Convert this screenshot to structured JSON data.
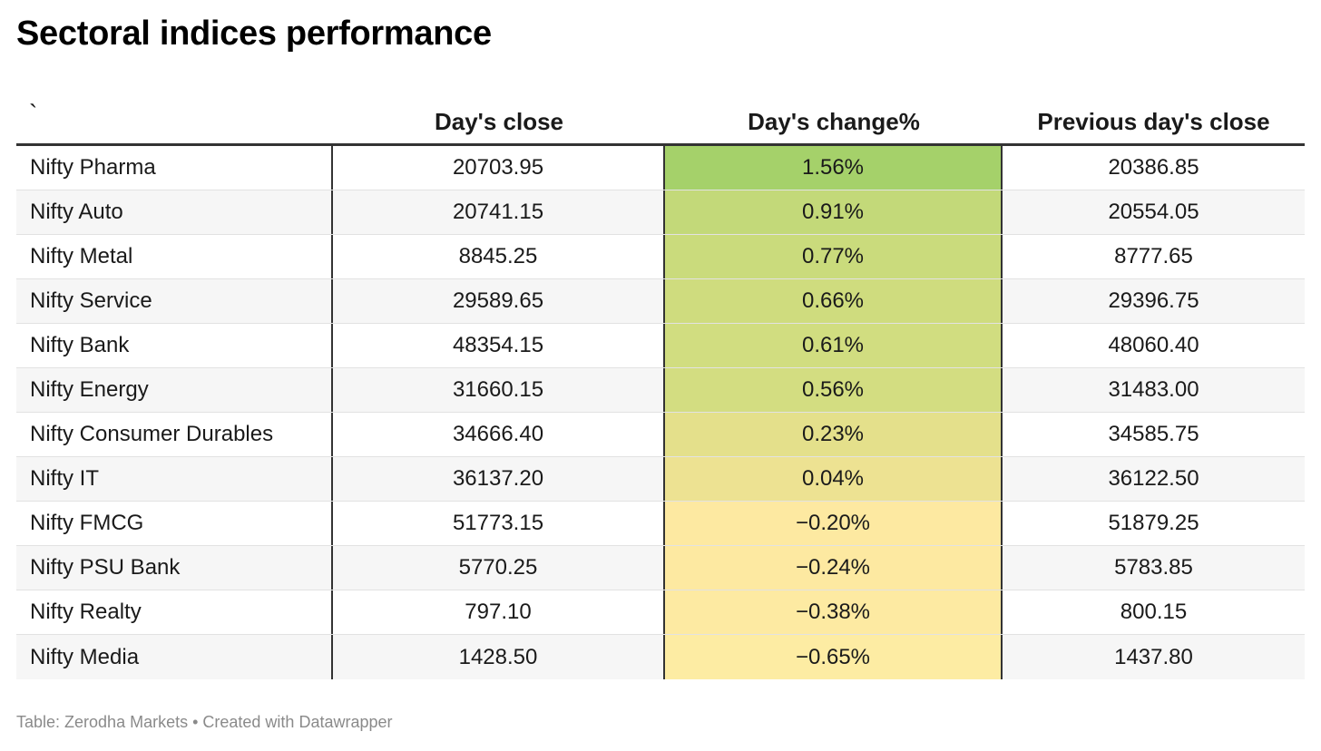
{
  "title": "Sectoral indices performance",
  "columns": {
    "first": "`",
    "close": "Day's close",
    "change": "Day's change%",
    "prev": "Previous day's close"
  },
  "footer": "Table: Zerodha Markets • Created with Datawrapper",
  "colors": {
    "header_rule": "#333333",
    "heat_high": "#a5d16a",
    "heat_mid": "#efe293",
    "heat_low": "#fdeca3"
  },
  "chart_data": {
    "type": "table",
    "columns": [
      "`",
      "Day's close",
      "Day's change%",
      "Previous day's close"
    ],
    "rows": [
      {
        "name": "Nifty Pharma",
        "close": "20703.95",
        "change": "1.56%",
        "prev": "20386.85",
        "change_value": 1.56
      },
      {
        "name": "Nifty Auto",
        "close": "20741.15",
        "change": "0.91%",
        "prev": "20554.05",
        "change_value": 0.91
      },
      {
        "name": "Nifty Metal",
        "close": "8845.25",
        "change": "0.77%",
        "prev": "8777.65",
        "change_value": 0.77
      },
      {
        "name": "Nifty Service",
        "close": "29589.65",
        "change": "0.66%",
        "prev": "29396.75",
        "change_value": 0.66
      },
      {
        "name": "Nifty Bank",
        "close": "48354.15",
        "change": "0.61%",
        "prev": "48060.40",
        "change_value": 0.61
      },
      {
        "name": "Nifty Energy",
        "close": "31660.15",
        "change": "0.56%",
        "prev": "31483.00",
        "change_value": 0.56
      },
      {
        "name": "Nifty Consumer Durables",
        "close": "34666.40",
        "change": "0.23%",
        "prev": "34585.75",
        "change_value": 0.23
      },
      {
        "name": "Nifty IT",
        "close": "36137.20",
        "change": "0.04%",
        "prev": "36122.50",
        "change_value": 0.04
      },
      {
        "name": "Nifty FMCG",
        "close": "51773.15",
        "change": "−0.20%",
        "prev": "51879.25",
        "change_value": -0.2
      },
      {
        "name": "Nifty PSU Bank",
        "close": "5770.25",
        "change": "−0.24%",
        "prev": "5783.85",
        "change_value": -0.24
      },
      {
        "name": "Nifty Realty",
        "close": "797.10",
        "change": "−0.38%",
        "prev": "800.15",
        "change_value": -0.38
      },
      {
        "name": "Nifty Media",
        "close": "1428.50",
        "change": "−0.65%",
        "prev": "1437.80",
        "change_value": -0.65
      }
    ]
  }
}
